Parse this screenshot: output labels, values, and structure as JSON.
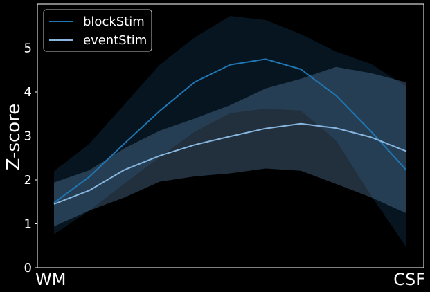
{
  "chart_data": {
    "type": "line",
    "title": "",
    "xlabel": "",
    "ylabel": "Z-score",
    "x_ends": [
      "WM",
      "CSF"
    ],
    "ylim": [
      0,
      6
    ],
    "yticks": [
      0,
      1,
      2,
      3,
      4,
      5
    ],
    "grid": false,
    "legend_position": "top-left",
    "background": "#000000",
    "x": [
      1,
      2,
      3,
      4,
      5,
      6,
      7,
      8,
      9,
      10,
      11
    ],
    "series": [
      {
        "name": "blockStim",
        "color": "#1f77b4",
        "band_color": "#1a4a73",
        "values": [
          1.48,
          2.07,
          2.83,
          3.57,
          4.23,
          4.62,
          4.75,
          4.52,
          3.92,
          3.1,
          2.22
        ],
        "upper": [
          2.2,
          2.82,
          3.72,
          4.62,
          5.25,
          5.73,
          5.64,
          5.32,
          4.92,
          4.64,
          4.12
        ],
        "lower": [
          0.76,
          1.3,
          1.92,
          2.52,
          3.1,
          3.52,
          3.62,
          3.58,
          2.9,
          1.64,
          0.46
        ]
      },
      {
        "name": "eventStim",
        "color": "#86b6e0",
        "band_color": "#6f9ecb",
        "values": [
          1.45,
          1.76,
          2.23,
          2.55,
          2.8,
          2.99,
          3.17,
          3.28,
          3.18,
          2.97,
          2.65
        ],
        "upper": [
          1.94,
          2.22,
          2.72,
          3.12,
          3.4,
          3.7,
          4.08,
          4.3,
          4.57,
          4.43,
          4.22
        ],
        "lower": [
          0.94,
          1.3,
          1.6,
          1.96,
          2.08,
          2.15,
          2.26,
          2.21,
          1.91,
          1.6,
          1.24
        ]
      }
    ]
  }
}
